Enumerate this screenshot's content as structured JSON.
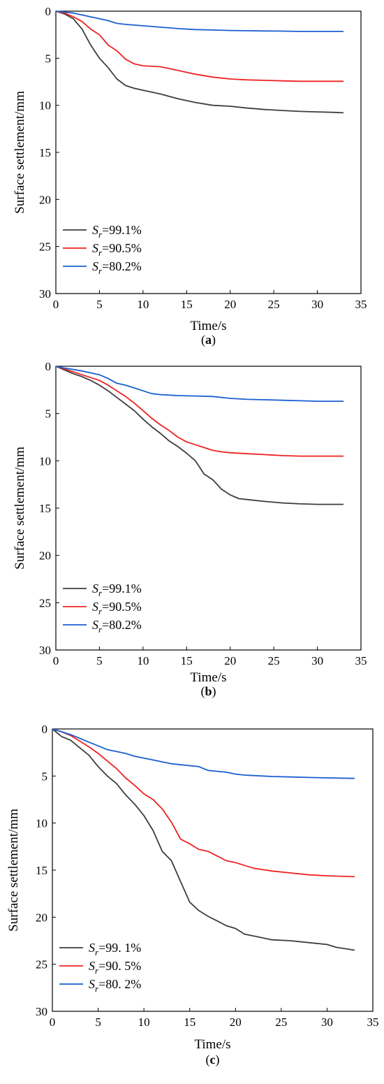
{
  "chart_data": [
    {
      "type": "line",
      "caption": "(a)",
      "caption_letter": "a",
      "xlabel": "Time/s",
      "ylabel": "Surface settlement/mm",
      "xlim": [
        0,
        35
      ],
      "ylim": [
        0,
        30
      ],
      "y_inverted": true,
      "x_ticks": [
        "0",
        "5",
        "10",
        "15",
        "20",
        "25",
        "30",
        "35"
      ],
      "y_ticks": [
        "0",
        "5",
        "10",
        "15",
        "20",
        "25",
        "30"
      ],
      "legend_position": "bottom-left",
      "series": [
        {
          "name": "99.1%",
          "symbol": "S",
          "subscript": "r",
          "color": "#3d3d3d",
          "x": [
            0,
            1,
            2,
            3,
            4,
            5,
            6,
            7,
            8,
            9,
            10,
            12,
            14,
            16,
            18,
            20,
            22,
            24,
            26,
            28,
            30,
            32,
            33
          ],
          "y": [
            0,
            0.3,
            0.8,
            1.9,
            3.6,
            5.0,
            6.0,
            7.2,
            7.9,
            8.2,
            8.4,
            8.8,
            9.3,
            9.7,
            10.0,
            10.1,
            10.3,
            10.45,
            10.55,
            10.65,
            10.7,
            10.75,
            10.8
          ]
        },
        {
          "name": "90.5%",
          "symbol": "S",
          "subscript": "r",
          "color": "#ee2222",
          "x": [
            0,
            1,
            2,
            3,
            4,
            5,
            6,
            7,
            8,
            9,
            10,
            12,
            14,
            16,
            18,
            20,
            22,
            24,
            26,
            28,
            30,
            33
          ],
          "y": [
            0,
            0.2,
            0.6,
            1.1,
            1.9,
            2.5,
            3.6,
            4.2,
            5.1,
            5.6,
            5.8,
            5.9,
            6.3,
            6.7,
            7.0,
            7.2,
            7.3,
            7.35,
            7.4,
            7.45,
            7.45,
            7.45
          ]
        },
        {
          "name": "80.2%",
          "symbol": "S",
          "subscript": "r",
          "color": "#1a5fd0",
          "x": [
            0,
            1,
            2,
            3,
            4,
            5,
            6,
            7,
            8,
            10,
            12,
            14,
            16,
            18,
            20,
            22,
            24,
            26,
            28,
            30,
            33
          ],
          "y": [
            0,
            0.1,
            0.2,
            0.4,
            0.6,
            0.8,
            1.0,
            1.3,
            1.4,
            1.55,
            1.7,
            1.85,
            1.95,
            2.0,
            2.05,
            2.08,
            2.1,
            2.12,
            2.15,
            2.15,
            2.15
          ]
        }
      ]
    },
    {
      "type": "line",
      "caption": "(b)",
      "caption_letter": "b",
      "xlabel": "Time/s",
      "ylabel": "Surface settlement/mm",
      "xlim": [
        0,
        35
      ],
      "ylim": [
        0,
        30
      ],
      "y_inverted": true,
      "x_ticks": [
        "0",
        "5",
        "10",
        "15",
        "20",
        "25",
        "30",
        "35"
      ],
      "y_ticks": [
        "0",
        "5",
        "10",
        "15",
        "20",
        "25",
        "30"
      ],
      "legend_position": "bottom-left",
      "series": [
        {
          "name": "99.1%",
          "symbol": "S",
          "subscript": "r",
          "color": "#3d3d3d",
          "x": [
            0,
            1,
            2,
            3,
            4,
            5,
            6,
            7,
            8,
            9,
            10,
            11,
            12,
            13,
            14,
            15,
            16,
            17,
            18,
            19,
            20,
            21,
            22,
            24,
            26,
            28,
            30,
            33
          ],
          "y": [
            0,
            0.4,
            0.8,
            1.1,
            1.5,
            2.0,
            2.6,
            3.3,
            4.0,
            4.7,
            5.6,
            6.4,
            7.1,
            7.9,
            8.5,
            9.2,
            10.0,
            11.4,
            12.0,
            13.0,
            13.6,
            14.0,
            14.1,
            14.3,
            14.45,
            14.55,
            14.6,
            14.6
          ]
        },
        {
          "name": "90.5%",
          "symbol": "S",
          "subscript": "r",
          "color": "#ee2222",
          "x": [
            0,
            1,
            2,
            3,
            4,
            5,
            6,
            7,
            8,
            9,
            10,
            11,
            12,
            13,
            14,
            15,
            16,
            17,
            18,
            19,
            20,
            22,
            24,
            26,
            28,
            30,
            33
          ],
          "y": [
            0,
            0.3,
            0.6,
            0.9,
            1.2,
            1.5,
            2.0,
            2.6,
            3.2,
            3.9,
            4.7,
            5.5,
            6.2,
            6.8,
            7.5,
            8.0,
            8.3,
            8.6,
            8.9,
            9.05,
            9.15,
            9.25,
            9.35,
            9.45,
            9.5,
            9.5,
            9.5
          ]
        },
        {
          "name": "80.2%",
          "symbol": "S",
          "subscript": "r",
          "color": "#1a5fd0",
          "x": [
            0,
            1,
            2,
            3,
            4,
            5,
            6,
            7,
            8,
            9,
            10,
            11,
            12,
            13,
            14,
            16,
            18,
            20,
            22,
            24,
            26,
            28,
            30,
            33
          ],
          "y": [
            0,
            0.2,
            0.35,
            0.5,
            0.7,
            0.9,
            1.3,
            1.8,
            2.0,
            2.3,
            2.6,
            2.9,
            3.0,
            3.05,
            3.1,
            3.15,
            3.2,
            3.4,
            3.5,
            3.55,
            3.6,
            3.65,
            3.7,
            3.7
          ]
        }
      ]
    },
    {
      "type": "line",
      "caption": "(c)",
      "caption_letter": "c",
      "xlabel": "Time/s",
      "ylabel": "Surface settlement/mm",
      "xlim": [
        0,
        35
      ],
      "ylim": [
        0,
        30
      ],
      "y_inverted": true,
      "x_ticks": [
        "0",
        "5",
        "10",
        "15",
        "20",
        "25",
        "30",
        "35"
      ],
      "y_ticks": [
        "0",
        "5",
        "10",
        "15",
        "20",
        "25",
        "30"
      ],
      "legend_position": "bottom-left",
      "series": [
        {
          "name": "99. 1%",
          "symbol": "S",
          "subscript": "r",
          "color": "#3d3d3d",
          "x": [
            0,
            1,
            2,
            3,
            4,
            5,
            6,
            7,
            8,
            9,
            10,
            11,
            12,
            13,
            14,
            15,
            16,
            17,
            18,
            19,
            20,
            21,
            22,
            24,
            26,
            28,
            30,
            31,
            33
          ],
          "y": [
            0,
            0.8,
            1.2,
            2.0,
            2.8,
            4.0,
            5.0,
            5.8,
            7.0,
            8.0,
            9.2,
            10.8,
            13.0,
            14.0,
            16.2,
            18.4,
            19.3,
            19.9,
            20.4,
            20.9,
            21.2,
            21.8,
            22.0,
            22.4,
            22.5,
            22.7,
            22.9,
            23.2,
            23.5
          ]
        },
        {
          "name": "90. 5%",
          "symbol": "S",
          "subscript": "r",
          "color": "#ee2222",
          "x": [
            0,
            1,
            2,
            3,
            4,
            5,
            6,
            7,
            8,
            9,
            10,
            11,
            12,
            13,
            14,
            15,
            16,
            17,
            18,
            19,
            20,
            21,
            22,
            24,
            26,
            28,
            30,
            33
          ],
          "y": [
            0,
            0.3,
            0.7,
            1.3,
            1.9,
            2.6,
            3.4,
            4.2,
            5.2,
            6.0,
            6.9,
            7.5,
            8.5,
            9.9,
            11.7,
            12.2,
            12.8,
            13.0,
            13.5,
            14.0,
            14.2,
            14.5,
            14.8,
            15.1,
            15.3,
            15.5,
            15.6,
            15.7
          ]
        },
        {
          "name": "80. 2%",
          "symbol": "S",
          "subscript": "r",
          "color": "#1a5fd0",
          "x": [
            0,
            1,
            2,
            3,
            4,
            5,
            6,
            7,
            8,
            9,
            10,
            11,
            12,
            13,
            14,
            15,
            16,
            17,
            18,
            19,
            20,
            21,
            22,
            24,
            26,
            28,
            30,
            33
          ],
          "y": [
            0,
            0.3,
            0.6,
            1.0,
            1.4,
            1.8,
            2.2,
            2.4,
            2.6,
            2.9,
            3.1,
            3.3,
            3.5,
            3.7,
            3.8,
            3.9,
            4.0,
            4.4,
            4.5,
            4.6,
            4.8,
            4.9,
            4.95,
            5.05,
            5.1,
            5.15,
            5.2,
            5.25
          ]
        }
      ]
    }
  ]
}
